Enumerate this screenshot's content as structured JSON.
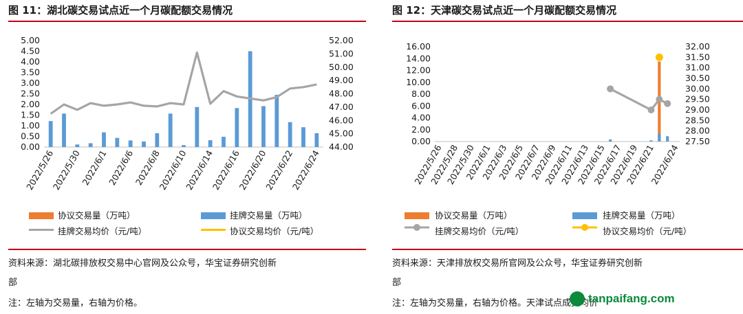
{
  "panels": [
    {
      "title": "图 11：湖北碳交易试点近一个月碳配额交易情况",
      "source_line1": "资料来源：湖北碳排放权交易中心官网及公众号，华宝证券研究创新",
      "source_line2": "部",
      "note": "注：左轴为交易量，右轴为价格。",
      "legend": [
        "协议交易量（万吨）",
        "挂牌交易量（万吨）",
        "挂牌交易均价（元/吨）",
        "协议交易均价（元/吨）"
      ]
    },
    {
      "title": "图 12：天津碳交易试点近一个月碳配额交易情况",
      "source_line1": "资料来源：天津排放权交易所官网及公众号，华宝证券研究创新",
      "source_line2": "部",
      "note": "注：左轴为交易量，右轴为价格。天津试点成交均价",
      "legend": [
        "协议交易量（万吨）",
        "挂牌交易量（万吨）",
        "挂牌交易均价（元/吨）",
        "协议交易均价（元/吨）"
      ]
    }
  ],
  "colors": {
    "agreement_volume": "#ed7d31",
    "listing_volume": "#5b9bd5",
    "listing_price": "#a5a5a5",
    "agreement_price": "#ffc000",
    "rule": "#c0001a"
  },
  "watermark": "tanpaifang.com",
  "chart_data": [
    {
      "type": "bar",
      "dates": [
        "2022/5/26",
        "2022/5/27",
        "2022/5/30",
        "2022/5/31",
        "2022/6/1",
        "2022/6/2",
        "2022/6/6",
        "2022/6/7",
        "2022/6/8",
        "2022/6/9",
        "2022/6/10",
        "2022/6/13",
        "2022/6/14",
        "2022/6/15",
        "2022/6/16",
        "2022/6/17",
        "2022/6/20",
        "2022/6/21",
        "2022/6/22",
        "2022/6/23",
        "2022/6/24"
      ],
      "tick_labels": [
        "2022/5/26",
        "2022/5/30",
        "2022/6/1",
        "2022/6/6",
        "2022/6/8",
        "2022/6/10",
        "2022/6/14",
        "2022/6/16",
        "2022/6/20",
        "2022/6/22",
        "2022/6/24"
      ],
      "series": [
        {
          "name": "挂牌交易量（万吨）",
          "axis": "left",
          "type": "bar",
          "values": [
            1.22,
            1.57,
            0.12,
            0.18,
            0.69,
            0.43,
            0.31,
            0.26,
            0.65,
            1.57,
            0.09,
            1.88,
            0.32,
            0.48,
            1.83,
            4.5,
            1.92,
            2.45,
            1.17,
            0.93,
            0.65
          ]
        },
        {
          "name": "挂牌交易均价（元/吨）",
          "axis": "right",
          "type": "line",
          "values": [
            46.5,
            47.2,
            46.8,
            47.3,
            47.1,
            47.2,
            47.35,
            47.1,
            47.05,
            47.3,
            47.2,
            51.1,
            47.25,
            48.2,
            47.8,
            47.65,
            47.5,
            47.75,
            48.4,
            48.5,
            48.7
          ]
        }
      ],
      "y_left": {
        "ticks": [
          "0.00",
          "0.50",
          "1.00",
          "1.50",
          "2.00",
          "2.50",
          "3.00",
          "3.50",
          "4.00",
          "4.50",
          "5.00"
        ],
        "min": 0,
        "max": 5
      },
      "y_right": {
        "ticks": [
          "44.00",
          "45.00",
          "46.00",
          "47.00",
          "48.00",
          "49.00",
          "50.00",
          "51.00",
          "52.00"
        ],
        "min": 44,
        "max": 52
      }
    },
    {
      "type": "bar",
      "dates": [
        "2022/5/26",
        "2022/5/27",
        "2022/5/28",
        "2022/5/29",
        "2022/5/30",
        "2022/5/31",
        "2022/6/1",
        "2022/6/2",
        "2022/6/3",
        "2022/6/4",
        "2022/6/5",
        "2022/6/6",
        "2022/6/7",
        "2022/6/8",
        "2022/6/9",
        "2022/6/10",
        "2022/6/11",
        "2022/6/12",
        "2022/6/13",
        "2022/6/14",
        "2022/6/15",
        "2022/6/16",
        "2022/6/17",
        "2022/6/18",
        "2022/6/19",
        "2022/6/20",
        "2022/6/21",
        "2022/6/22",
        "2022/6/23",
        "2022/6/24"
      ],
      "tick_labels": [
        "2022/5/26",
        "2022/5/28",
        "2022/5/30",
        "2022/6/1",
        "2022/6/3",
        "2022/6/5",
        "2022/6/7",
        "2022/6/9",
        "2022/6/11",
        "2022/6/13",
        "2022/6/15",
        "2022/6/17",
        "2022/6/19",
        "2022/6/21",
        "2022/6/24"
      ],
      "series": [
        {
          "name": "协议交易量（万吨）",
          "axis": "left",
          "type": "bar",
          "points": [
            {
              "date": "2022/6/22",
              "value": 13.5
            }
          ]
        },
        {
          "name": "挂牌交易量（万吨）",
          "axis": "left",
          "type": "bar",
          "points": [
            {
              "date": "2022/6/16",
              "value": 0.35
            },
            {
              "date": "2022/6/21",
              "value": 0.2
            },
            {
              "date": "2022/6/22",
              "value": 1.3
            },
            {
              "date": "2022/6/23",
              "value": 0.9
            }
          ]
        },
        {
          "name": "挂牌交易均价（元/吨）",
          "axis": "right",
          "type": "line",
          "points": [
            {
              "date": "2022/6/16",
              "value": 30.0
            },
            {
              "date": "2022/6/21",
              "value": 29.0
            },
            {
              "date": "2022/6/22",
              "value": 29.5
            },
            {
              "date": "2022/6/23",
              "value": 29.3
            }
          ]
        },
        {
          "name": "协议交易均价（元/吨）",
          "axis": "right",
          "type": "scatter",
          "points": [
            {
              "date": "2022/6/22",
              "value": 31.5
            }
          ]
        }
      ],
      "y_left": {
        "ticks": [
          "0.00",
          "2.00",
          "4.00",
          "6.00",
          "8.00",
          "10.00",
          "12.00",
          "14.00",
          "16.00"
        ],
        "min": 0,
        "max": 16
      },
      "y_right": {
        "ticks": [
          "27.50",
          "28.00",
          "28.50",
          "29.00",
          "29.50",
          "30.00",
          "30.50",
          "31.00",
          "31.50",
          "32.00"
        ],
        "min": 27.5,
        "max": 32
      }
    }
  ]
}
